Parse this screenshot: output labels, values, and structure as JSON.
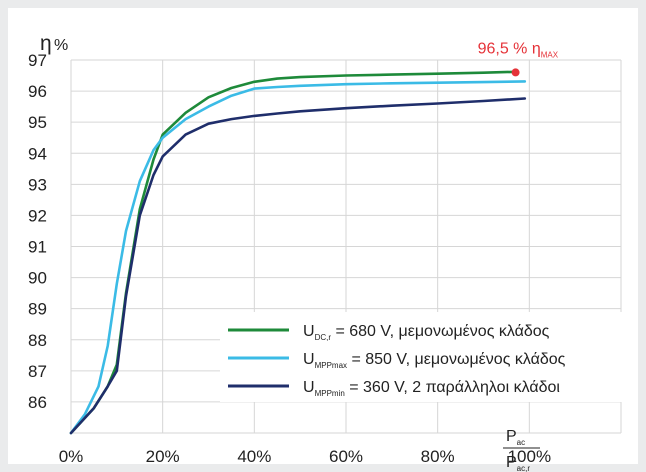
{
  "chart_data": {
    "type": "line",
    "y_symbol": "η",
    "y_unit": "%",
    "y_ticks": [
      "97",
      "96",
      "95",
      "94",
      "93",
      "92",
      "91",
      "90",
      "89",
      "88",
      "87",
      "86"
    ],
    "x_ticks": [
      "0%",
      "20%",
      "40%",
      "60%",
      "80%",
      "100%"
    ],
    "x_ratio": {
      "numerator": "P",
      "numerator_sub": "ac",
      "denominator": "P",
      "denominator_sub": "ac,r"
    },
    "xlim": [
      0,
      1.2
    ],
    "ylim": [
      85,
      97
    ],
    "grid": true,
    "legend_position": "bottom-right",
    "annotation": {
      "text": "96,5 % η",
      "sub": "MAX",
      "x": 0.97,
      "y": 96.6,
      "color": "#e53238"
    },
    "series": [
      {
        "key": "udc",
        "color": "#1e8a3a",
        "legend": {
          "symbol": "U",
          "sub": "DC,r",
          "text": " = 680 V, μεμονωμένος κλάδος"
        },
        "x": [
          0,
          0.05,
          0.08,
          0.1,
          0.12,
          0.15,
          0.18,
          0.2,
          0.25,
          0.3,
          0.35,
          0.4,
          0.45,
          0.5,
          0.6,
          0.7,
          0.8,
          0.9,
          0.97
        ],
        "y": [
          85,
          85.8,
          86.5,
          87.2,
          89.5,
          92.2,
          93.8,
          94.6,
          95.3,
          95.8,
          96.1,
          96.3,
          96.4,
          96.45,
          96.5,
          96.53,
          96.56,
          96.59,
          96.62
        ]
      },
      {
        "key": "umppmax",
        "color": "#3bbbe6",
        "legend": {
          "symbol": "U",
          "sub": "MPPmax",
          "text": " = 850 V, μεμονωμένος κλάδος"
        },
        "x": [
          0,
          0.03,
          0.06,
          0.08,
          0.1,
          0.12,
          0.15,
          0.18,
          0.2,
          0.25,
          0.3,
          0.35,
          0.4,
          0.45,
          0.5,
          0.6,
          0.7,
          0.8,
          0.9,
          0.99
        ],
        "y": [
          85,
          85.6,
          86.5,
          87.8,
          89.8,
          91.5,
          93.1,
          94.1,
          94.5,
          95.1,
          95.5,
          95.85,
          96.08,
          96.13,
          96.17,
          96.22,
          96.25,
          96.27,
          96.29,
          96.31
        ]
      },
      {
        "key": "umppmin",
        "color": "#1f2e6b",
        "legend": {
          "symbol": "U",
          "sub": "MPPmin",
          "text": " = 360 V, 2 παράλληλοι κλάδοι"
        },
        "x": [
          0,
          0.05,
          0.08,
          0.1,
          0.12,
          0.15,
          0.18,
          0.2,
          0.25,
          0.3,
          0.35,
          0.4,
          0.45,
          0.5,
          0.6,
          0.7,
          0.8,
          0.9,
          0.99
        ],
        "y": [
          85,
          85.8,
          86.5,
          87.0,
          89.4,
          92.0,
          93.3,
          93.9,
          94.6,
          94.95,
          95.1,
          95.2,
          95.28,
          95.35,
          95.45,
          95.53,
          95.6,
          95.68,
          95.76
        ]
      }
    ]
  }
}
